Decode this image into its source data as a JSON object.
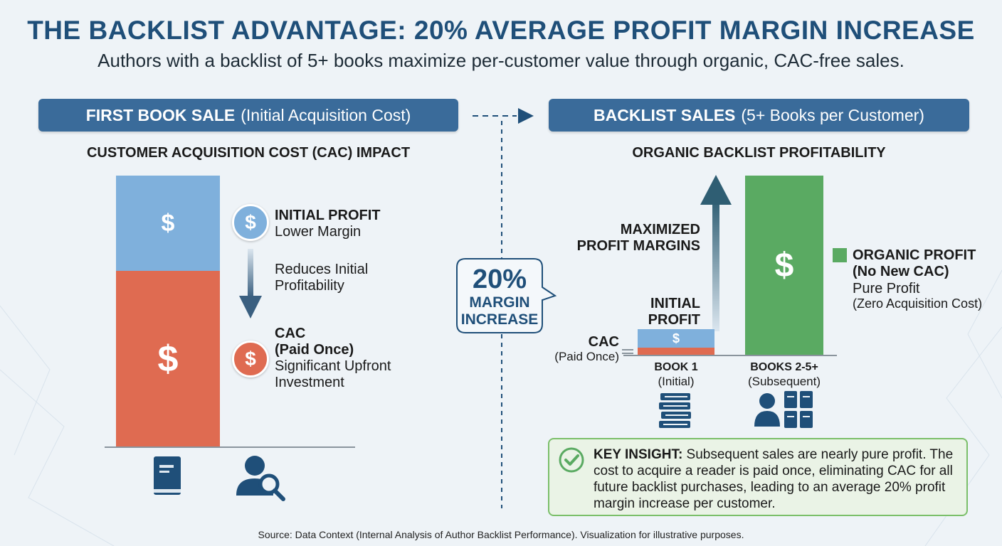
{
  "header": {
    "title": "THE BACKLIST ADVANTAGE: 20% AVERAGE PROFIT MARGIN INCREASE",
    "subtitle": "Authors with a backlist of 5+ books maximize per-customer value through organic, CAC-free sales."
  },
  "left": {
    "banner_bold": "FIRST BOOK SALE",
    "banner_light": "(Initial Acquisition Cost)",
    "heading": "CUSTOMER ACQUISITION COST (CAC) IMPACT",
    "initial_profit_title": "INITIAL PROFIT",
    "initial_profit_desc": "Lower Margin",
    "reduces_line1": "Reduces Initial",
    "reduces_line2": "Profitability",
    "cac_title1": "CAC",
    "cac_title2": "(Paid Once)",
    "cac_desc1": "Significant Upfront",
    "cac_desc2": "Investment",
    "dollar": "$"
  },
  "center": {
    "pct": "20%",
    "line1": "MARGIN",
    "line2": "INCREASE"
  },
  "right": {
    "banner_bold": "BACKLIST SALES",
    "banner_light": "(5+ Books per Customer)",
    "heading": "ORGANIC BACKLIST PROFITABILITY",
    "maximized1": "MAXIMIZED",
    "maximized2": "PROFIT MARGINS",
    "initial1": "INITIAL",
    "initial2": "PROFIT",
    "cac_label": "CAC",
    "cac_sub": "(Paid Once)",
    "book1_label": "BOOK 1",
    "book1_sub": "(Initial)",
    "books25_label": "BOOKS 2-5+",
    "books25_sub": "(Subsequent)",
    "organic1": "ORGANIC PROFIT",
    "organic2": "(No New CAC)",
    "organic3": "Pure Profit",
    "organic4": "(Zero Acquisition Cost)",
    "dollar": "$"
  },
  "insight": {
    "bold": "KEY INSIGHT:",
    "text": " Subsequent sales are nearly pure profit. The cost to acquire a reader is paid once, eliminating CAC for all future backlist purchases, leading to an average 20% profit margin increase per customer."
  },
  "source": "Source: Data Context (Internal Analysis of Author Backlist Performance). Visualization for illustrative purposes.",
  "colors": {
    "profit": "#7fb0dc",
    "cac": "#df6b51",
    "organic": "#5aaa62",
    "banner": "#3a6b9a",
    "title": "#1f4f79"
  },
  "icons": [
    "book-icon",
    "user-search-icon",
    "books-stack-icon",
    "user-books-icon",
    "check-circle-icon",
    "dollar-icon"
  ],
  "chart_data": [
    {
      "type": "bar",
      "stacked": true,
      "series": [
        {
          "name": "INITIAL PROFIT",
          "values": [
            1
          ]
        },
        {
          "name": "CAC",
          "values": [
            1.5
          ]
        }
      ]
    },
    {
      "type": "bar",
      "stacked": true,
      "categories": [
        "BOOK 1",
        "BOOKS 2-5+"
      ],
      "series": [
        {
          "name": "CAC",
          "values": [
            0.25,
            0
          ]
        },
        {
          "name": "INITIAL PROFIT",
          "values": [
            0.75,
            0
          ]
        },
        {
          "name": "ORGANIC PROFIT",
          "values": [
            0,
            7.2
          ]
        }
      ],
      "annotation": "20% MARGIN INCREASE"
    }
  ]
}
